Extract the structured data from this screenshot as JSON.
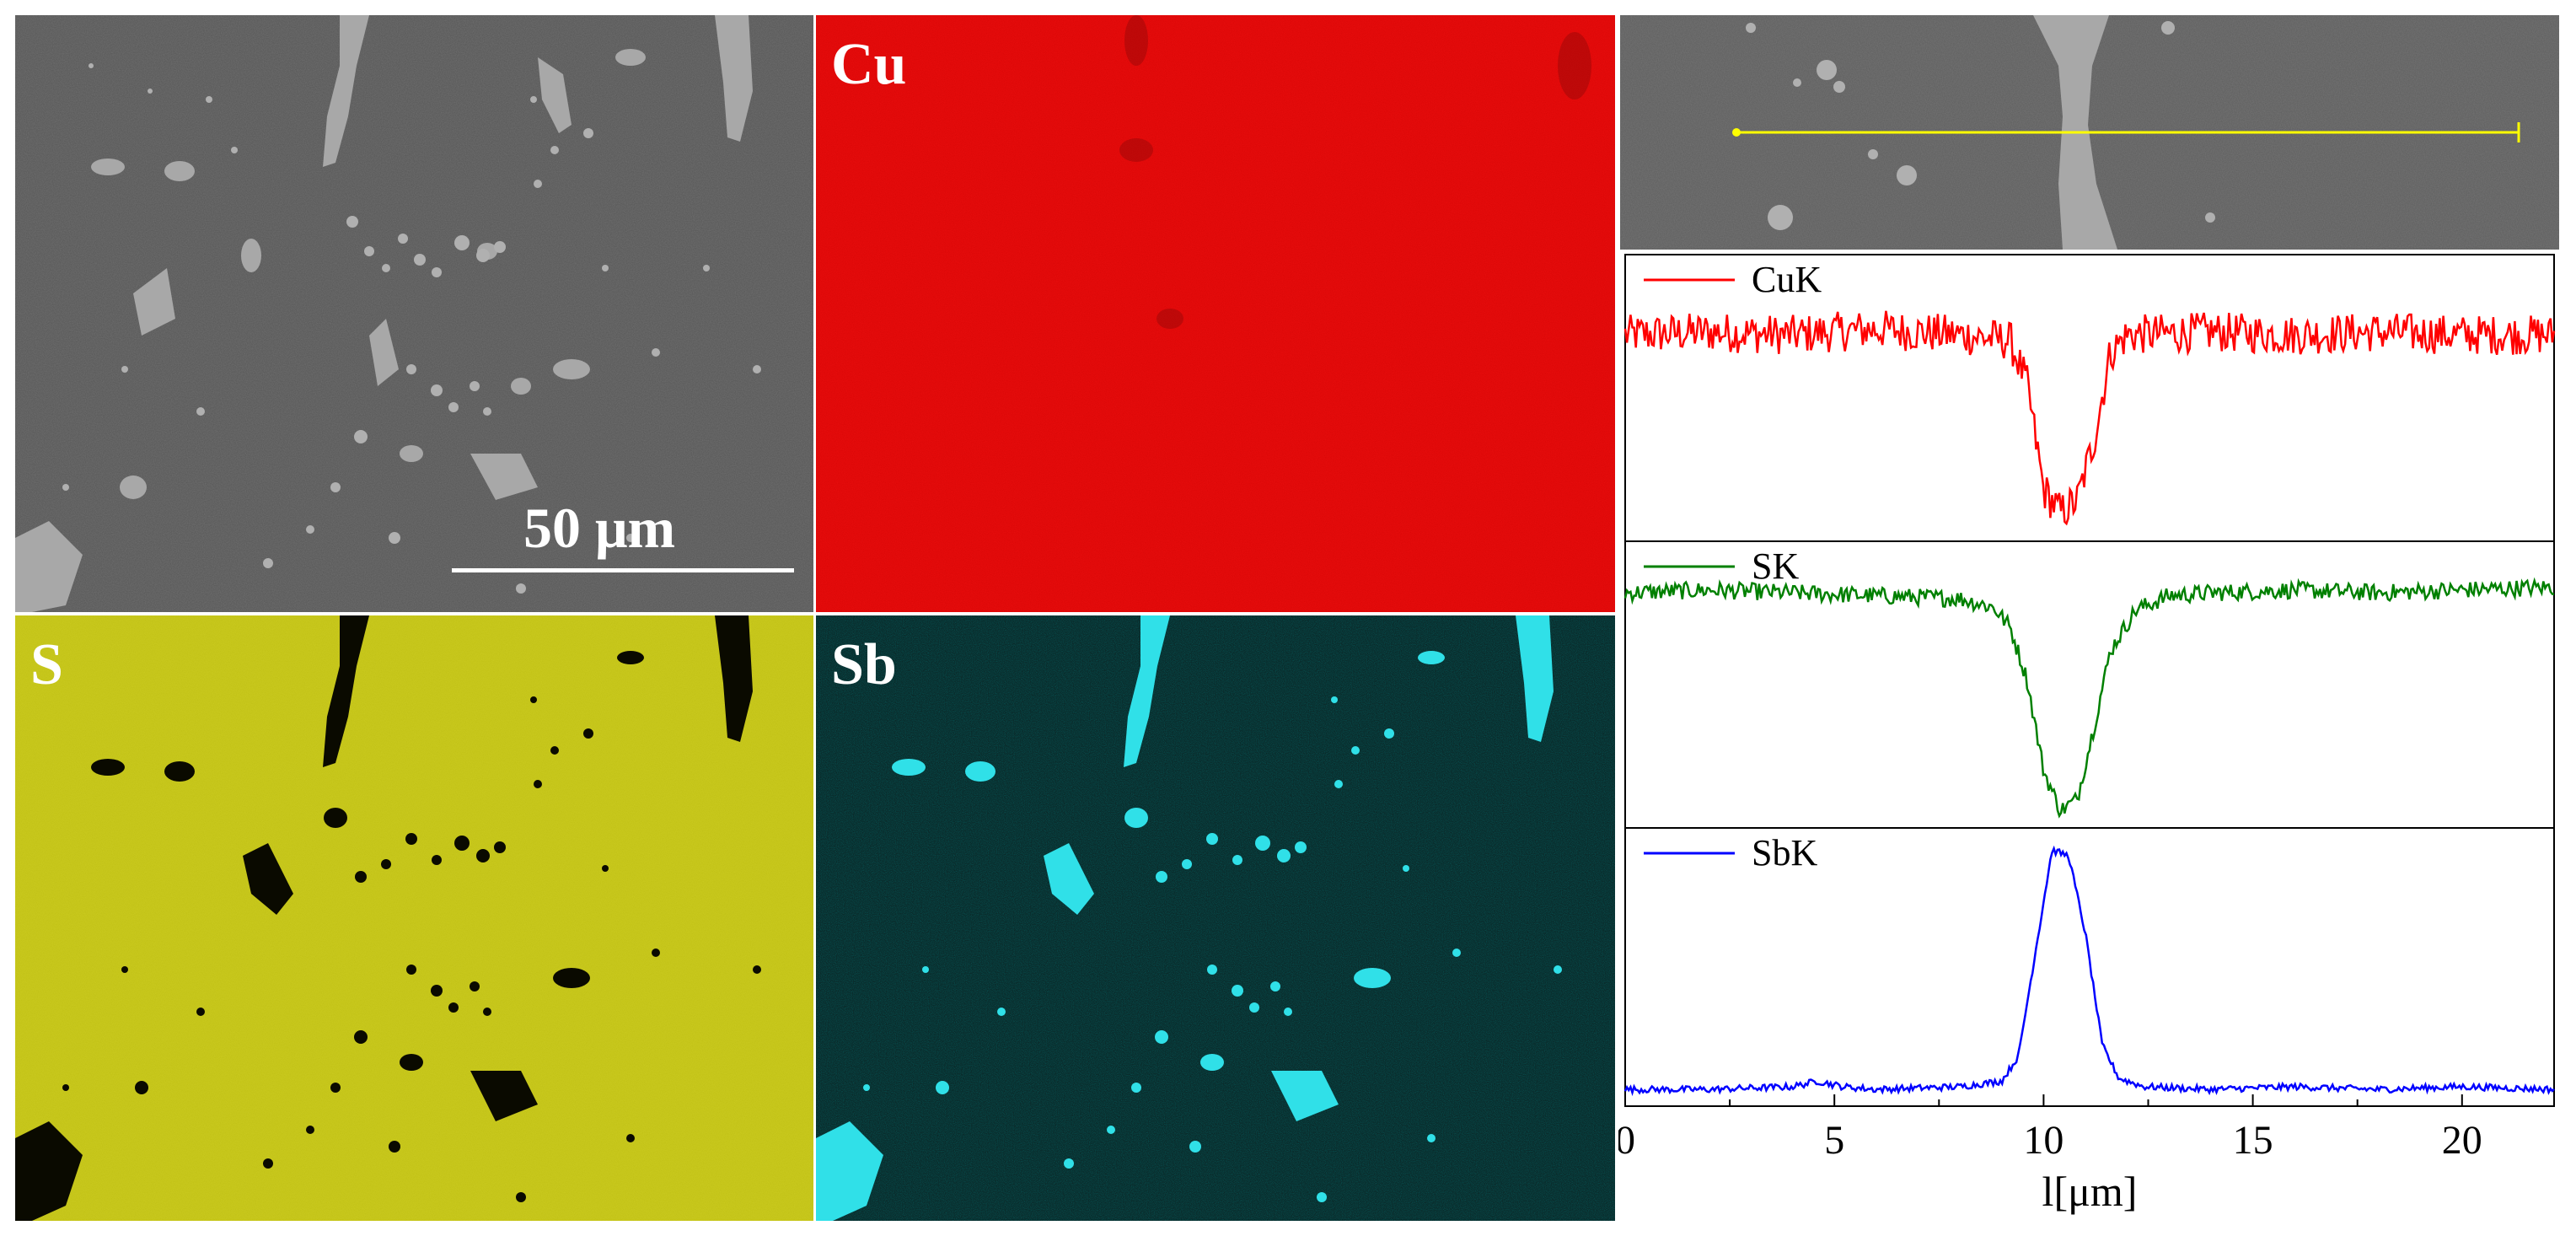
{
  "figure": {
    "sem_panel": {
      "scale_bar_label": "50 μm"
    },
    "maps": [
      {
        "element": "Cu",
        "color": "#e60c0c"
      },
      {
        "element": "S",
        "color": "#c8c81e"
      },
      {
        "element": "Sb",
        "color": "#0a2a2a"
      }
    ],
    "line_scan_color": "#ffff00"
  },
  "chart_data": {
    "type": "line",
    "title": "",
    "xlabel": "l[μm]",
    "ylabel": "",
    "xlim": [
      0,
      22.2
    ],
    "xticks": [
      0,
      5,
      10,
      15,
      20
    ],
    "grid": false,
    "series": [
      {
        "name": "CuK",
        "color": "#ff0000",
        "ylim": [
          0,
          1
        ],
        "x": [
          0,
          2,
          4,
          6,
          8,
          9.2,
          9.6,
          10.0,
          10.4,
          10.8,
          11.2,
          11.6,
          12,
          14,
          16,
          18,
          20,
          22.2
        ],
        "y": [
          0.72,
          0.73,
          0.72,
          0.74,
          0.72,
          0.7,
          0.55,
          0.18,
          0.1,
          0.14,
          0.35,
          0.66,
          0.72,
          0.73,
          0.72,
          0.73,
          0.72,
          0.72
        ]
      },
      {
        "name": "SK",
        "color": "#008000",
        "ylim": [
          0,
          1
        ],
        "x": [
          0,
          2,
          4,
          6,
          8,
          8.8,
          9.2,
          9.6,
          10.0,
          10.4,
          10.8,
          11.2,
          11.6,
          12.2,
          13,
          14,
          16,
          18,
          20,
          22.2
        ],
        "y": [
          0.82,
          0.83,
          0.82,
          0.81,
          0.8,
          0.77,
          0.7,
          0.52,
          0.2,
          0.06,
          0.1,
          0.35,
          0.62,
          0.76,
          0.81,
          0.82,
          0.83,
          0.82,
          0.83,
          0.84
        ]
      },
      {
        "name": "SbK",
        "color": "#0000ff",
        "ylim": [
          0,
          1
        ],
        "x": [
          0,
          2,
          4,
          4.6,
          5.2,
          6,
          8,
          9.0,
          9.4,
          9.8,
          10.2,
          10.6,
          11.0,
          11.4,
          11.8,
          12.4,
          14,
          16,
          18,
          20,
          22.2
        ],
        "y": [
          0.06,
          0.06,
          0.07,
          0.09,
          0.07,
          0.06,
          0.07,
          0.09,
          0.18,
          0.55,
          0.92,
          0.9,
          0.62,
          0.22,
          0.1,
          0.07,
          0.06,
          0.07,
          0.06,
          0.07,
          0.06
        ]
      }
    ]
  }
}
